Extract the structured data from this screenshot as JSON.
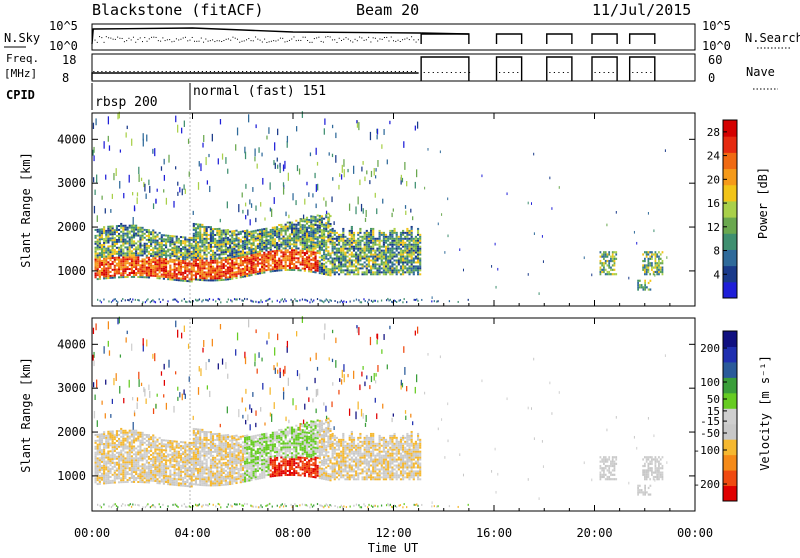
{
  "header": {
    "station": "Blackstone (fitACF)",
    "beam": "Beam 20",
    "date": "11/Jul/2015"
  },
  "labels": {
    "nsky": "N.Sky",
    "freq_line1": "Freq.",
    "freq_line2": "[MHz]",
    "cpid": "CPID",
    "nsearch": "N.Search",
    "nave": "Nave",
    "nsky_ticks": [
      "10^5",
      "10^0"
    ],
    "freq_ticks": [
      "18",
      "8"
    ],
    "nave_ticks": [
      "60",
      "0"
    ],
    "cpid_modes": [
      "rbsp 200",
      "normal (fast) 151"
    ]
  },
  "colors": {
    "power": [
      "#1f1fd8",
      "#1a3a8a",
      "#2f6a9a",
      "#3f8f70",
      "#6aa84f",
      "#a9d04a",
      "#f2c418",
      "#f59a1a",
      "#f06a12",
      "#e62a10",
      "#d40000"
    ],
    "velocity": [
      "#e00000",
      "#f04a10",
      "#f58a18",
      "#f5b830",
      "#c8c8c8",
      "#cfcfcf",
      "#66cc22",
      "#3a9e3a",
      "#2a5a9a",
      "#1f2fb0",
      "#101080"
    ]
  },
  "chart_data": [
    {
      "type": "heatmap",
      "name": "power-panel",
      "xlabel": "Time UT",
      "ylabel": "Slant Range [km]",
      "xlim": [
        0,
        24
      ],
      "ylim": [
        200,
        4600
      ],
      "x_ticks": [
        "00:00",
        "04:00",
        "08:00",
        "12:00",
        "16:00",
        "20:00",
        "00:00"
      ],
      "y_ticks": [
        1000,
        2000,
        3000,
        4000
      ],
      "colorbar": {
        "label": "Power [dB]",
        "ticks": [
          4,
          8,
          12,
          16,
          20,
          24,
          28
        ],
        "range": [
          0,
          30
        ]
      }
    },
    {
      "type": "heatmap",
      "name": "velocity-panel",
      "xlabel": "Time UT",
      "ylabel": "Slant Range [km]",
      "xlim": [
        0,
        24
      ],
      "ylim": [
        200,
        4600
      ],
      "x_ticks": [
        "00:00",
        "04:00",
        "08:00",
        "12:00",
        "16:00",
        "20:00",
        "00:00"
      ],
      "y_ticks": [
        1000,
        2000,
        3000,
        4000
      ],
      "colorbar": {
        "label": "Velocity [m s⁻¹]",
        "ticks": [
          -200,
          -100,
          -50,
          -15,
          15,
          50,
          100,
          200
        ],
        "range": [
          -250,
          250
        ]
      }
    }
  ]
}
